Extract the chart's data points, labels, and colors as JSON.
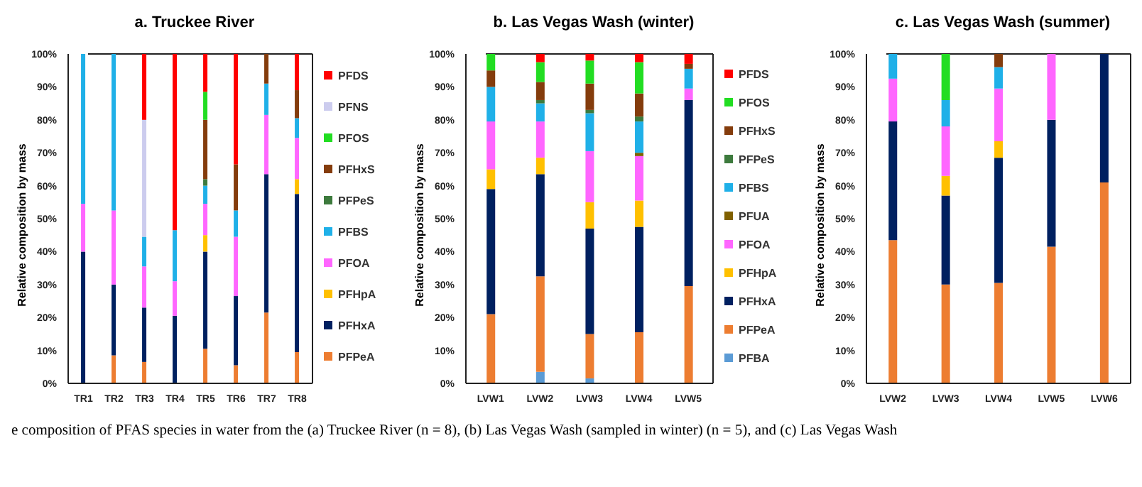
{
  "chart_data": [
    {
      "type": "bar",
      "title": "a. Truckee River",
      "ylabel": "Relative composition by mass",
      "stacked": true,
      "legend": "right",
      "categories": [
        "TR1",
        "TR2",
        "TR3",
        "TR4",
        "TR5",
        "TR6",
        "TR7",
        "TR8"
      ],
      "ylim": [
        0,
        100
      ],
      "yticks": [
        {
          "value": 0,
          "label": "0%"
        },
        {
          "value": 10,
          "label": "10%"
        },
        {
          "value": 20,
          "label": "20%"
        },
        {
          "value": 30,
          "label": "30%"
        },
        {
          "value": 40,
          "label": "40%"
        },
        {
          "value": 50,
          "label": "50%"
        },
        {
          "value": 60,
          "label": "60%"
        },
        {
          "value": 70,
          "label": "70%"
        },
        {
          "value": 80,
          "label": "80%"
        },
        {
          "value": 90,
          "label": "90%"
        },
        {
          "value": 100,
          "label": "100%"
        }
      ],
      "annotations": [
        "e composition of PFAS species in water from the (a) Truckee River (n = 8), (b) Las Vegas Wash (sampled in winter) (n = 5), and (c) Las Vegas Wash"
      ],
      "series": [
        {
          "name": "PFPeA",
          "color": "#ed7d31",
          "values": [
            null,
            8.5,
            6.5,
            null,
            10.5,
            5.5,
            21.5,
            9.5
          ]
        },
        {
          "name": "PFHxA",
          "color": "#002060",
          "values": [
            40,
            21.5,
            16.5,
            20.5,
            29.5,
            21,
            42,
            48
          ]
        },
        {
          "name": "PFHpA",
          "color": "#ffc000",
          "values": [
            null,
            null,
            null,
            null,
            5,
            null,
            null,
            4.5
          ]
        },
        {
          "name": "PFOA",
          "color": "#ff66ff",
          "values": [
            14.5,
            22.5,
            12.5,
            10.5,
            9.5,
            18,
            18,
            12.5
          ]
        },
        {
          "name": "PFBS",
          "color": "#1fb0e8",
          "values": [
            45.5,
            47.5,
            9,
            15.5,
            5.5,
            8,
            9.5,
            6
          ]
        },
        {
          "name": "PFPeS",
          "color": "#3d7a3d",
          "values": [
            null,
            null,
            null,
            null,
            2,
            null,
            null,
            null
          ]
        },
        {
          "name": "PFHxS",
          "color": "#843c0c",
          "values": [
            null,
            null,
            null,
            null,
            18,
            14,
            9,
            8.5
          ]
        },
        {
          "name": "PFOS",
          "color": "#22dd22",
          "values": [
            null,
            null,
            null,
            null,
            8.5,
            null,
            null,
            null
          ]
        },
        {
          "name": "PFNS",
          "color": "#ccccee",
          "values": [
            null,
            null,
            35.5,
            null,
            null,
            null,
            null,
            null
          ]
        },
        {
          "name": "PFDS",
          "color": "#ff0000",
          "values": [
            null,
            null,
            20,
            53.5,
            11.5,
            33.5,
            null,
            11
          ]
        }
      ]
    },
    {
      "type": "bar",
      "title": "b. Las Vegas Wash (winter)",
      "ylabel": "Relative composition by mass",
      "stacked": true,
      "legend": "right",
      "categories": [
        "LVW1",
        "LVW2",
        "LVW3",
        "LVW4",
        "LVW5"
      ],
      "ylim": [
        0,
        100
      ],
      "yticks": [
        {
          "value": 0,
          "label": "0%"
        },
        {
          "value": 10,
          "label": "10%"
        },
        {
          "value": 20,
          "label": "20%"
        },
        {
          "value": 30,
          "label": "30%"
        },
        {
          "value": 40,
          "label": "40%"
        },
        {
          "value": 50,
          "label": "50%"
        },
        {
          "value": 60,
          "label": "60%"
        },
        {
          "value": 70,
          "label": "70%"
        },
        {
          "value": 80,
          "label": "80%"
        },
        {
          "value": 90,
          "label": "90%"
        },
        {
          "value": 100,
          "label": "100%"
        }
      ],
      "series": [
        {
          "name": "PFBA",
          "color": "#5b9bd5",
          "values": [
            null,
            3.5,
            1.5,
            null,
            null
          ]
        },
        {
          "name": "PFPeA",
          "color": "#ed7d31",
          "values": [
            21,
            29,
            13.5,
            15.5,
            29.5
          ]
        },
        {
          "name": "PFHxA",
          "color": "#002060",
          "values": [
            38,
            31,
            32,
            32,
            56.5
          ]
        },
        {
          "name": "PFHpA",
          "color": "#ffc000",
          "values": [
            6,
            5,
            8,
            8,
            null
          ]
        },
        {
          "name": "PFOA",
          "color": "#ff66ff",
          "values": [
            14.5,
            11,
            15.5,
            13.5,
            3.5
          ]
        },
        {
          "name": "PFUA",
          "color": "#806000",
          "values": [
            null,
            null,
            null,
            1,
            null
          ]
        },
        {
          "name": "PFBS",
          "color": "#1fb0e8",
          "values": [
            10.5,
            5.5,
            11.5,
            9.5,
            6
          ]
        },
        {
          "name": "PFPeS",
          "color": "#3d7a3d",
          "values": [
            null,
            1,
            1,
            1.5,
            null
          ]
        },
        {
          "name": "PFHxS",
          "color": "#843c0c",
          "values": [
            5,
            5.5,
            8,
            7,
            1.5
          ]
        },
        {
          "name": "PFOS",
          "color": "#22dd22",
          "values": [
            5,
            6,
            7,
            9.5,
            null
          ]
        },
        {
          "name": "PFDS",
          "color": "#ff0000",
          "values": [
            null,
            2.5,
            2,
            2.5,
            3
          ]
        }
      ]
    },
    {
      "type": "bar",
      "title": "c. Las Vegas Wash (summer)",
      "ylabel": "Relative composition by mass",
      "stacked": true,
      "categories": [
        "LVW2",
        "LVW3",
        "LVW4",
        "LVW5",
        "LVW6"
      ],
      "ylim": [
        0,
        100
      ],
      "yticks": [
        {
          "value": 0,
          "label": "0%"
        },
        {
          "value": 10,
          "label": "10%"
        },
        {
          "value": 20,
          "label": "20%"
        },
        {
          "value": 30,
          "label": "30%"
        },
        {
          "value": 40,
          "label": "40%"
        },
        {
          "value": 50,
          "label": "50%"
        },
        {
          "value": 60,
          "label": "60%"
        },
        {
          "value": 70,
          "label": "70%"
        },
        {
          "value": 80,
          "label": "80%"
        },
        {
          "value": 90,
          "label": "90%"
        },
        {
          "value": 100,
          "label": "100%"
        }
      ],
      "series": [
        {
          "color": "#ed7d31",
          "values": [
            43.5,
            30,
            30.5,
            41.5,
            61
          ]
        },
        {
          "color": "#002060",
          "values": [
            36,
            27,
            38,
            38.5,
            39
          ]
        },
        {
          "color": "#ffc000",
          "values": [
            null,
            6,
            5,
            null,
            null
          ]
        },
        {
          "color": "#ff66ff",
          "values": [
            13,
            15,
            16,
            20,
            null
          ]
        },
        {
          "color": "#1fb0e8",
          "values": [
            7.5,
            8,
            6.5,
            null,
            null
          ]
        },
        {
          "color": "#843c0c",
          "values": [
            null,
            null,
            4,
            null,
            null
          ]
        },
        {
          "color": "#22dd22",
          "values": [
            null,
            14,
            null,
            null,
            null
          ]
        }
      ]
    }
  ]
}
